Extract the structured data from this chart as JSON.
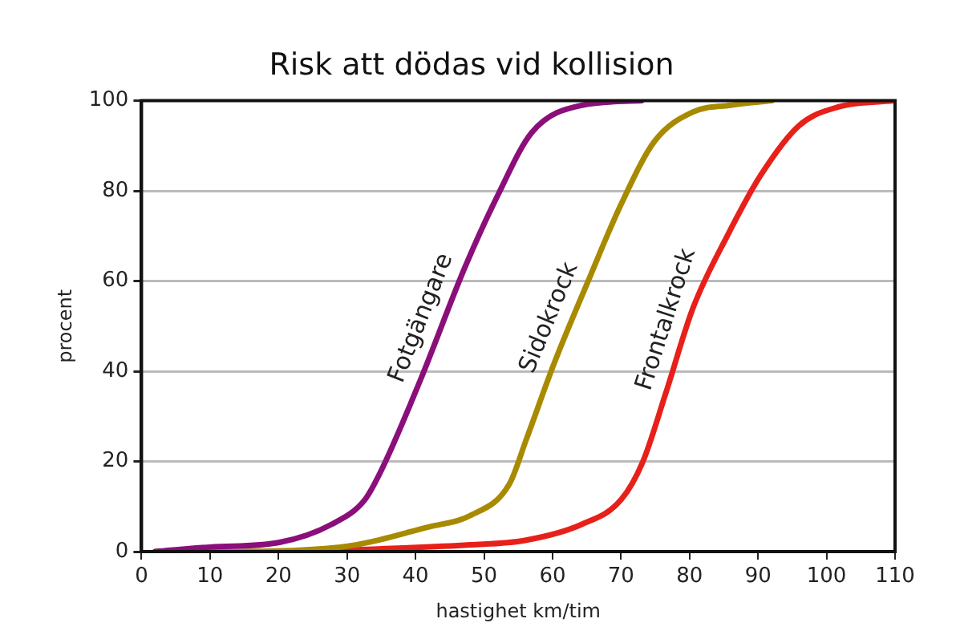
{
  "chart_data": {
    "type": "line",
    "title": "Risk att dödas vid kollision",
    "xlabel": "hastighet km/tim",
    "ylabel": "procent",
    "xlim": [
      0,
      110
    ],
    "xticks": [
      0,
      10,
      20,
      30,
      40,
      50,
      60,
      70,
      80,
      90,
      100,
      110
    ],
    "ylim": [
      0,
      100
    ],
    "yticks": [
      0,
      20,
      40,
      60,
      80,
      100
    ],
    "grid": "y",
    "legend": false,
    "marker": "none",
    "line_style": "solid",
    "series": [
      {
        "name": "Fotgängare",
        "color": "#8b0f7a",
        "x": [
          2,
          10,
          20,
          27.7,
          32.6,
          35,
          40.7,
          47.2,
          52,
          57,
          64.3,
          73
        ],
        "values": [
          0,
          1,
          2,
          6,
          11.5,
          18,
          38,
          63,
          79,
          93,
          99,
          100
        ]
      },
      {
        "name": "Sidokrock",
        "color": "#a88a00",
        "x": [
          2,
          10,
          29,
          42,
          48,
          53.7,
          56.2,
          60.3,
          65.2,
          70,
          74.9,
          80.5,
          86,
          92
        ],
        "values": [
          0,
          0,
          1,
          5.5,
          8,
          15,
          25,
          42,
          60,
          77,
          91,
          97.5,
          99,
          100
        ]
      },
      {
        "name": "Frontalkrock",
        "color": "#e8201a",
        "x": [
          24,
          48,
          56,
          64.2,
          70,
          73.2,
          76.5,
          80.5,
          85.5,
          90.4,
          96,
          101.7,
          109.8
        ],
        "values": [
          0,
          1.5,
          2.5,
          6,
          11.5,
          20,
          35,
          54,
          70,
          83.5,
          94.5,
          98.6,
          100
        ]
      }
    ]
  }
}
